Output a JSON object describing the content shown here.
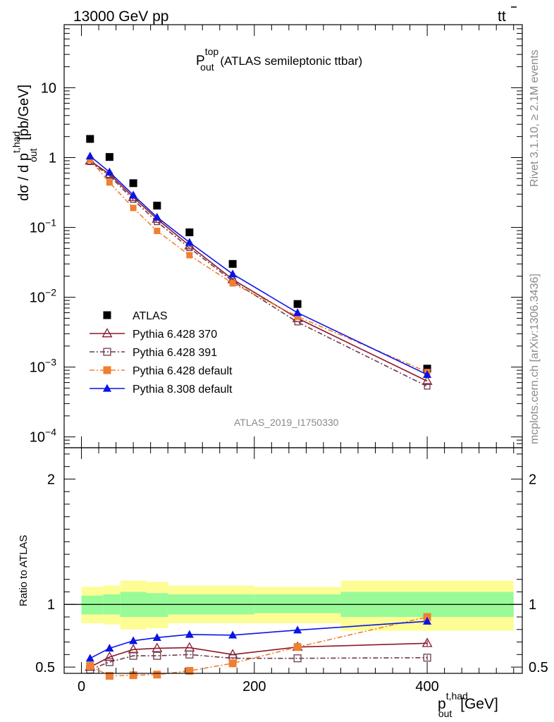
{
  "header": {
    "left": "13000 GeV pp",
    "right_text": "tt",
    "right_bar": "̄"
  },
  "side_labels": {
    "rivet": "Rivet 3.1.10, ≥ 2.1M events",
    "mcplots": "mcplots.cern.ch [arXiv:1306.3436]"
  },
  "chart_data": [
    {
      "panel": "main",
      "type": "line",
      "title_main": "P",
      "title_sup": "top",
      "title_sub": "out",
      "title_rest": " (ATLAS semileptonic ttbar)",
      "ylabel": "dσ / d p^{t,had}_{out} [pb/GeV]",
      "ylabel_parts": {
        "prefix": "dσ / d p",
        "sup": "t,had",
        "sub": "out",
        "suffix": " [pb/GeV]"
      },
      "yscale": "log",
      "ylim": [
        7e-05,
        80
      ],
      "xlim": [
        -20,
        510
      ],
      "yticks": [
        {
          "v": 0.0001,
          "base": "10",
          "exp": "−4"
        },
        {
          "v": 0.001,
          "base": "10",
          "exp": "−3"
        },
        {
          "v": 0.01,
          "base": "10",
          "exp": "−2"
        },
        {
          "v": 0.1,
          "base": "10",
          "exp": "−1"
        },
        {
          "v": 1,
          "base": "1",
          "exp": ""
        },
        {
          "v": 10,
          "base": "10",
          "exp": ""
        }
      ],
      "watermark": "ATLAS_2019_I1750330",
      "legend_position": "lower-left",
      "series": [
        {
          "name": "ATLAS",
          "color": "#000000",
          "marker": "square",
          "line": "none",
          "x": [
            10,
            32.5,
            60,
            87.5,
            125,
            175,
            250,
            400
          ],
          "y": [
            1.85,
            1.02,
            0.43,
            0.205,
            0.085,
            0.03,
            0.008,
            0.00095
          ]
        },
        {
          "name": "Pythia 6.428 370",
          "color": "#8b1a2b",
          "marker": "triangle-open",
          "line": "solid",
          "x": [
            10,
            32.5,
            60,
            87.5,
            125,
            175,
            250,
            400
          ],
          "y": [
            0.9,
            0.58,
            0.27,
            0.132,
            0.055,
            0.018,
            0.005,
            0.00063
          ]
        },
        {
          "name": "Pythia 6.428 391",
          "color": "#6b3a4b",
          "marker": "square-open",
          "line": "dashdot",
          "x": [
            10,
            32.5,
            60,
            87.5,
            125,
            175,
            250,
            400
          ],
          "y": [
            0.87,
            0.55,
            0.25,
            0.12,
            0.051,
            0.017,
            0.0044,
            0.00053
          ]
        },
        {
          "name": "Pythia 6.428 default",
          "color": "#f07f30",
          "marker": "square",
          "line": "dashdot",
          "x": [
            10,
            32.5,
            60,
            87.5,
            125,
            175,
            250,
            400
          ],
          "y": [
            0.93,
            0.44,
            0.19,
            0.089,
            0.04,
            0.0158,
            0.0053,
            0.00085
          ]
        },
        {
          "name": "Pythia 8.308 default",
          "color": "#0a14e6",
          "marker": "triangle",
          "line": "solid",
          "x": [
            10,
            32.5,
            60,
            87.5,
            125,
            175,
            250,
            400
          ],
          "y": [
            1.05,
            0.62,
            0.29,
            0.14,
            0.061,
            0.0215,
            0.006,
            0.00078
          ]
        }
      ]
    },
    {
      "panel": "ratio",
      "type": "line",
      "ylabel": "Ratio to ATLAS",
      "yscale": "linear",
      "ylim": [
        0.45,
        2.25
      ],
      "xlim": [
        -20,
        510
      ],
      "xlabel_parts": {
        "prefix": "p",
        "sup": "t,had",
        "sub": "out",
        "suffix": " [GeV]"
      },
      "xticks": [
        0,
        200,
        400
      ],
      "yticks": [
        0.5,
        1,
        2
      ],
      "bins": [
        {
          "lo": 0,
          "hi": 25,
          "green": [
            0.92,
            1.07
          ],
          "yellow": [
            0.85,
            1.14
          ]
        },
        {
          "lo": 25,
          "hi": 45,
          "green": [
            0.92,
            1.08
          ],
          "yellow": [
            0.84,
            1.15
          ]
        },
        {
          "lo": 45,
          "hi": 75,
          "green": [
            0.9,
            1.1
          ],
          "yellow": [
            0.8,
            1.19
          ]
        },
        {
          "lo": 75,
          "hi": 100,
          "green": [
            0.9,
            1.09
          ],
          "yellow": [
            0.81,
            1.18
          ]
        },
        {
          "lo": 100,
          "hi": 150,
          "green": [
            0.92,
            1.08
          ],
          "yellow": [
            0.85,
            1.15
          ]
        },
        {
          "lo": 150,
          "hi": 200,
          "green": [
            0.92,
            1.08
          ],
          "yellow": [
            0.85,
            1.15
          ]
        },
        {
          "lo": 200,
          "hi": 300,
          "green": [
            0.93,
            1.08
          ],
          "yellow": [
            0.85,
            1.14
          ]
        },
        {
          "lo": 300,
          "hi": 500,
          "green": [
            0.9,
            1.1
          ],
          "yellow": [
            0.79,
            1.19
          ]
        }
      ],
      "series": [
        {
          "name": "Pythia 6.428 370",
          "color": "#8b1a2b",
          "marker": "triangle-open",
          "line": "solid",
          "x": [
            10,
            32.5,
            60,
            87.5,
            125,
            175,
            250,
            400
          ],
          "y": [
            0.5,
            0.58,
            0.64,
            0.65,
            0.655,
            0.6,
            0.66,
            0.69
          ],
          "err": [
            0,
            0,
            0,
            0,
            0,
            0,
            0,
            0.02
          ]
        },
        {
          "name": "Pythia 6.428 391",
          "color": "#6b3a4b",
          "marker": "square-open",
          "line": "dashdot",
          "x": [
            10,
            32.5,
            60,
            87.5,
            125,
            175,
            250,
            400
          ],
          "y": [
            0.48,
            0.54,
            0.59,
            0.59,
            0.6,
            0.57,
            0.57,
            0.575
          ],
          "err": [
            0,
            0,
            0,
            0,
            0,
            0,
            0,
            0.02
          ]
        },
        {
          "name": "Pythia 6.428 default",
          "color": "#f07f30",
          "marker": "square",
          "line": "dashdot",
          "x": [
            10,
            32.5,
            60,
            87.5,
            125,
            175,
            250,
            400
          ],
          "y": [
            0.51,
            0.43,
            0.435,
            0.44,
            0.47,
            0.53,
            0.66,
            0.9
          ],
          "err": [
            0,
            0,
            0,
            0,
            0,
            0,
            0,
            0
          ]
        },
        {
          "name": "Pythia 8.308 default",
          "color": "#0a14e6",
          "marker": "triangle",
          "line": "solid",
          "x": [
            10,
            32.5,
            60,
            87.5,
            125,
            175,
            250,
            400
          ],
          "y": [
            0.57,
            0.65,
            0.71,
            0.735,
            0.76,
            0.755,
            0.795,
            0.865
          ],
          "err": [
            0,
            0,
            0,
            0,
            0,
            0,
            0,
            0.02
          ]
        }
      ]
    }
  ]
}
